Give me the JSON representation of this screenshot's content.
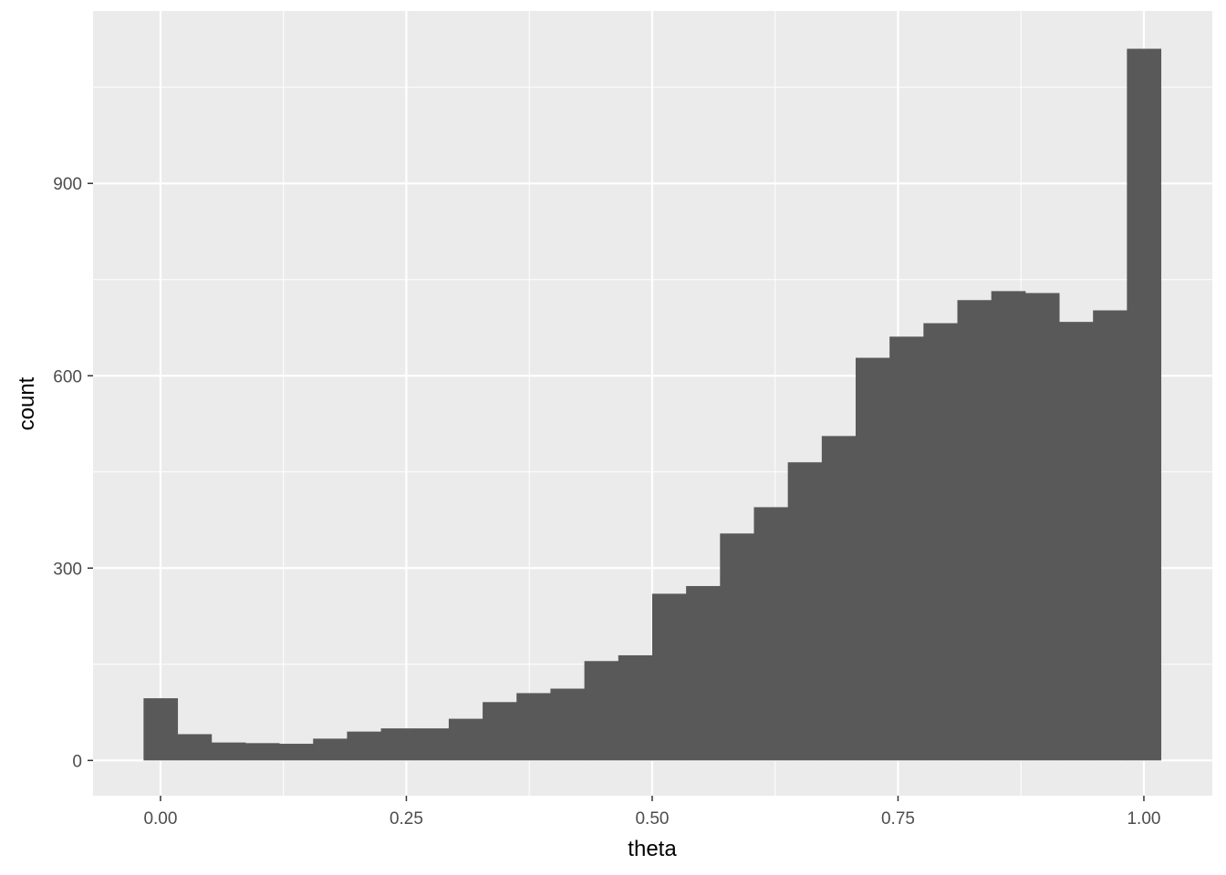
{
  "chart_data": {
    "type": "bar",
    "subtype": "histogram",
    "xlabel": "theta",
    "ylabel": "count",
    "bins": 30,
    "bin_range": [
      -0.01724,
      1.01724
    ],
    "values": [
      97,
      41,
      28,
      27,
      26,
      34,
      45,
      50,
      50,
      65,
      91,
      105,
      112,
      155,
      164,
      260,
      272,
      354,
      395,
      465,
      506,
      628,
      661,
      682,
      718,
      732,
      729,
      684,
      702,
      1110
    ],
    "xlim": [
      -0.0686,
      1.0696
    ],
    "ylim": [
      -55,
      1169
    ],
    "x_ticks": [
      0,
      0.25,
      0.5,
      0.75,
      1.0
    ],
    "x_tick_labels": [
      "0.00",
      "0.25",
      "0.50",
      "0.75",
      "1.00"
    ],
    "y_ticks": [
      0,
      300,
      600,
      900
    ],
    "y_tick_labels": [
      "0",
      "300",
      "600",
      "900"
    ],
    "grid": true,
    "colors": {
      "bar": "#595959",
      "panel": "#ebebeb",
      "grid": "#ffffff"
    }
  }
}
